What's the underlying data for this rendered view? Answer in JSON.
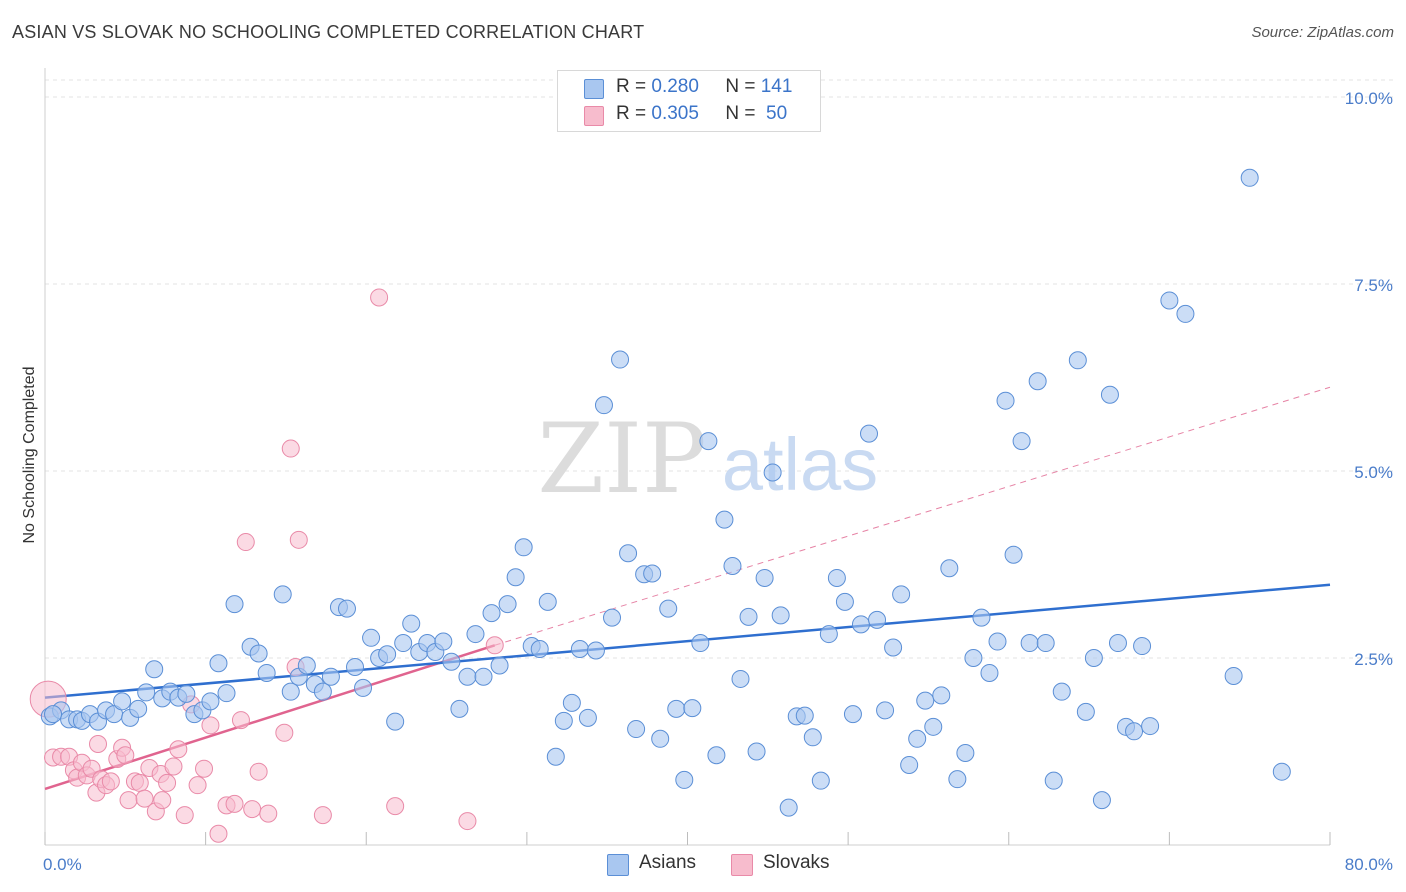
{
  "title": "ASIAN VS SLOVAK NO SCHOOLING COMPLETED CORRELATION CHART",
  "source": "Source: ZipAtlas.com",
  "watermark": {
    "zip": "ZIP",
    "atlas": "atlas"
  },
  "colors": {
    "asian_fill": "#a9c7f0",
    "asian_stroke": "#5b8fd6",
    "asian_line": "#2f6fcf",
    "slovak_fill": "#f7bccd",
    "slovak_stroke": "#e98aa8",
    "slovak_line": "#e0648f",
    "axis_text": "#4a7cc9"
  },
  "legend": {
    "rows": [
      {
        "r_label": "R =",
        "r_value": "0.280",
        "n_label": "N =",
        "n_value": "141"
      },
      {
        "r_label": "R =",
        "r_value": "0.305",
        "n_label": "N =",
        "n_value": "50"
      }
    ]
  },
  "bottom_legend": [
    "Asians",
    "Slovaks"
  ],
  "chart_data": {
    "type": "scatter",
    "ylabel": "No Schooling Completed",
    "x_tick_labels": {
      "min": "0.0%",
      "max": "80.0%"
    },
    "y_tick_labels": [
      "2.5%",
      "5.0%",
      "7.5%",
      "10.0%"
    ],
    "y_ticks": [
      2.5,
      5.0,
      7.5,
      10.0
    ],
    "xlim": [
      0,
      80
    ],
    "ylim": [
      0,
      10
    ],
    "grid": true,
    "legend_position": "top-center",
    "series": [
      {
        "name": "Asians",
        "trend": {
          "x": [
            0,
            80
          ],
          "y": [
            1.97,
            3.48
          ],
          "dashed_extension": false
        },
        "points": [
          [
            0.3,
            1.72
          ],
          [
            1.0,
            1.8
          ],
          [
            1.5,
            1.68
          ],
          [
            2.0,
            1.68
          ],
          [
            2.3,
            1.66
          ],
          [
            2.8,
            1.75
          ],
          [
            3.3,
            1.65
          ],
          [
            3.8,
            1.8
          ],
          [
            4.3,
            1.75
          ],
          [
            4.8,
            1.92
          ],
          [
            5.3,
            1.7
          ],
          [
            5.8,
            1.82
          ],
          [
            6.3,
            2.04
          ],
          [
            6.8,
            2.35
          ],
          [
            7.3,
            1.96
          ],
          [
            7.8,
            2.05
          ],
          [
            8.3,
            1.97
          ],
          [
            8.8,
            2.02
          ],
          [
            9.3,
            1.75
          ],
          [
            9.8,
            1.8
          ],
          [
            10.3,
            1.92
          ],
          [
            10.8,
            2.43
          ],
          [
            11.3,
            2.03
          ],
          [
            11.8,
            3.22
          ],
          [
            12.8,
            2.65
          ],
          [
            13.3,
            2.56
          ],
          [
            13.8,
            2.3
          ],
          [
            14.8,
            3.35
          ],
          [
            15.3,
            2.05
          ],
          [
            15.8,
            2.25
          ],
          [
            16.3,
            2.4
          ],
          [
            16.8,
            2.15
          ],
          [
            17.3,
            2.05
          ],
          [
            17.8,
            2.25
          ],
          [
            18.3,
            3.18
          ],
          [
            18.8,
            3.16
          ],
          [
            19.3,
            2.38
          ],
          [
            19.8,
            2.1
          ],
          [
            20.3,
            2.77
          ],
          [
            20.8,
            2.5
          ],
          [
            21.3,
            2.55
          ],
          [
            21.8,
            1.65
          ],
          [
            22.3,
            2.7
          ],
          [
            22.8,
            2.96
          ],
          [
            23.3,
            2.58
          ],
          [
            23.8,
            2.7
          ],
          [
            24.3,
            2.58
          ],
          [
            24.8,
            2.72
          ],
          [
            25.3,
            2.45
          ],
          [
            25.8,
            1.82
          ],
          [
            26.3,
            2.25
          ],
          [
            26.8,
            2.82
          ],
          [
            27.3,
            2.25
          ],
          [
            27.8,
            3.1
          ],
          [
            28.3,
            2.4
          ],
          [
            28.8,
            3.22
          ],
          [
            29.3,
            3.58
          ],
          [
            29.8,
            3.98
          ],
          [
            30.3,
            2.66
          ],
          [
            30.8,
            2.62
          ],
          [
            31.3,
            3.25
          ],
          [
            31.8,
            1.18
          ],
          [
            32.3,
            1.66
          ],
          [
            32.8,
            1.9
          ],
          [
            33.3,
            2.62
          ],
          [
            33.8,
            1.7
          ],
          [
            34.3,
            2.6
          ],
          [
            34.8,
            5.88
          ],
          [
            35.3,
            3.04
          ],
          [
            35.8,
            6.49
          ],
          [
            36.3,
            3.9
          ],
          [
            36.8,
            1.55
          ],
          [
            37.3,
            3.62
          ],
          [
            37.8,
            3.63
          ],
          [
            38.3,
            1.42
          ],
          [
            38.8,
            3.16
          ],
          [
            39.3,
            1.82
          ],
          [
            39.8,
            0.87
          ],
          [
            40.3,
            1.83
          ],
          [
            40.8,
            2.7
          ],
          [
            41.3,
            5.4
          ],
          [
            41.8,
            1.2
          ],
          [
            42.3,
            4.35
          ],
          [
            42.8,
            3.73
          ],
          [
            43.3,
            2.22
          ],
          [
            43.8,
            3.05
          ],
          [
            44.3,
            1.25
          ],
          [
            44.8,
            3.57
          ],
          [
            45.3,
            4.98
          ],
          [
            45.8,
            3.07
          ],
          [
            46.3,
            0.5
          ],
          [
            46.8,
            1.72
          ],
          [
            47.3,
            1.73
          ],
          [
            47.8,
            1.44
          ],
          [
            48.3,
            0.86
          ],
          [
            48.8,
            2.82
          ],
          [
            49.3,
            3.57
          ],
          [
            49.8,
            3.25
          ],
          [
            50.3,
            1.75
          ],
          [
            50.8,
            2.95
          ],
          [
            51.3,
            5.5
          ],
          [
            51.8,
            3.01
          ],
          [
            52.3,
            1.8
          ],
          [
            52.8,
            2.64
          ],
          [
            53.3,
            3.35
          ],
          [
            53.8,
            1.07
          ],
          [
            54.3,
            1.42
          ],
          [
            54.8,
            1.93
          ],
          [
            55.3,
            1.58
          ],
          [
            55.8,
            2.0
          ],
          [
            56.3,
            3.7
          ],
          [
            56.8,
            0.88
          ],
          [
            57.3,
            1.23
          ],
          [
            57.8,
            2.5
          ],
          [
            58.3,
            3.04
          ],
          [
            58.8,
            2.3
          ],
          [
            59.3,
            2.72
          ],
          [
            59.8,
            5.94
          ],
          [
            60.3,
            3.88
          ],
          [
            60.8,
            5.4
          ],
          [
            61.3,
            2.7
          ],
          [
            61.8,
            6.2
          ],
          [
            62.3,
            2.7
          ],
          [
            62.8,
            0.86
          ],
          [
            63.3,
            2.05
          ],
          [
            64.3,
            6.48
          ],
          [
            64.8,
            1.78
          ],
          [
            65.3,
            2.5
          ],
          [
            65.8,
            0.6
          ],
          [
            66.3,
            6.02
          ],
          [
            66.8,
            2.7
          ],
          [
            67.3,
            1.58
          ],
          [
            67.8,
            1.52
          ],
          [
            68.3,
            2.66
          ],
          [
            68.8,
            1.59
          ],
          [
            70.0,
            7.28
          ],
          [
            71.0,
            7.1
          ],
          [
            74.0,
            2.26
          ],
          [
            75.0,
            8.92
          ],
          [
            77.0,
            0.98
          ],
          [
            0.5,
            1.75
          ]
        ]
      },
      {
        "name": "Slovaks",
        "trend": {
          "x": [
            0,
            28
          ],
          "y": [
            0.75,
            2.67
          ],
          "dashed_extension": true,
          "dashed_to": [
            80,
            6.12
          ]
        },
        "points": [
          [
            0.2,
            1.95
          ],
          [
            0.5,
            1.17
          ],
          [
            1.0,
            1.18
          ],
          [
            1.5,
            1.18
          ],
          [
            1.8,
            1.0
          ],
          [
            2.0,
            0.9
          ],
          [
            2.3,
            1.1
          ],
          [
            2.6,
            0.93
          ],
          [
            2.9,
            1.02
          ],
          [
            3.2,
            0.7
          ],
          [
            3.5,
            0.88
          ],
          [
            3.8,
            0.8
          ],
          [
            4.1,
            0.85
          ],
          [
            4.5,
            1.15
          ],
          [
            4.8,
            1.3
          ],
          [
            5.2,
            0.6
          ],
          [
            5.6,
            0.85
          ],
          [
            5.9,
            0.83
          ],
          [
            6.2,
            0.62
          ],
          [
            6.5,
            1.03
          ],
          [
            6.9,
            0.45
          ],
          [
            7.2,
            0.95
          ],
          [
            7.6,
            0.83
          ],
          [
            8.0,
            1.05
          ],
          [
            8.3,
            1.28
          ],
          [
            8.7,
            0.4
          ],
          [
            9.1,
            1.88
          ],
          [
            9.5,
            0.8
          ],
          [
            9.9,
            1.02
          ],
          [
            10.3,
            1.6
          ],
          [
            10.8,
            0.15
          ],
          [
            11.3,
            0.53
          ],
          [
            11.8,
            0.55
          ],
          [
            12.2,
            1.67
          ],
          [
            12.5,
            4.05
          ],
          [
            12.9,
            0.48
          ],
          [
            13.3,
            0.98
          ],
          [
            13.9,
            0.42
          ],
          [
            14.9,
            1.5
          ],
          [
            15.3,
            5.3
          ],
          [
            15.6,
            2.38
          ],
          [
            15.8,
            4.08
          ],
          [
            17.3,
            0.4
          ],
          [
            20.8,
            7.32
          ],
          [
            21.8,
            0.52
          ],
          [
            26.3,
            0.32
          ],
          [
            28.0,
            2.67
          ],
          [
            3.3,
            1.35
          ],
          [
            5.0,
            1.2
          ],
          [
            7.3,
            0.6
          ]
        ]
      }
    ]
  }
}
